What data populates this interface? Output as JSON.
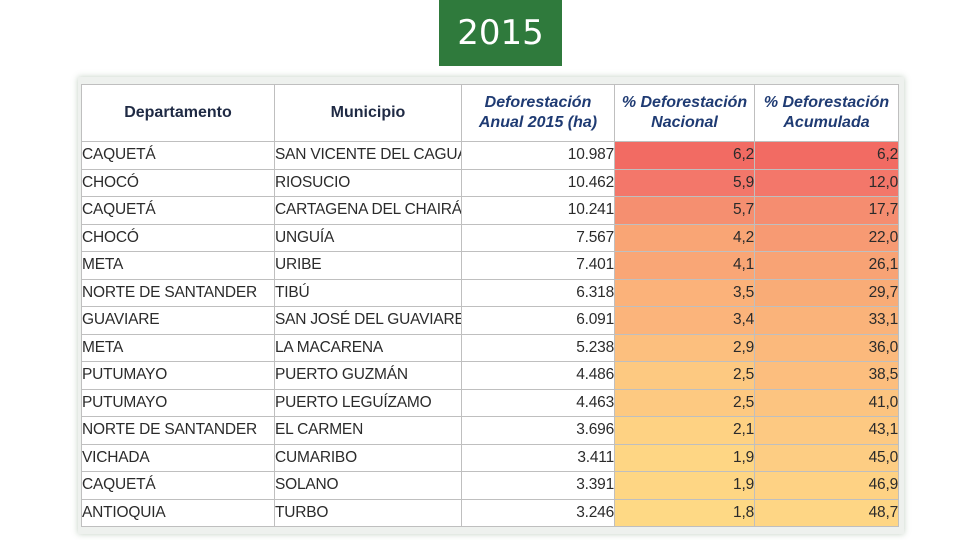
{
  "title": "2015",
  "table": {
    "headers": {
      "departamento": "Departamento",
      "municipio": "Municipio",
      "deforestacion": "Deforestación Anual 2015 (ha)",
      "nacional": "% Deforestación Nacional",
      "acumulada": "% Deforestación Acumulada"
    },
    "rows": [
      {
        "departamento": "CAQUETÁ",
        "municipio": "SAN VICENTE DEL CAGUÁN",
        "hectareas": "10.987",
        "nacional": "6,2",
        "acumulada": "6,2",
        "nac_color": "#f26b63",
        "acc_color": "#f26b63"
      },
      {
        "departamento": "CHOCÓ",
        "municipio": "RIOSUCIO",
        "hectareas": "10.462",
        "nacional": "5,9",
        "acumulada": "12,0",
        "nac_color": "#f3776a",
        "acc_color": "#f3776a"
      },
      {
        "departamento": "CAQUETÁ",
        "municipio": "CARTAGENA DEL CHAIRÁ",
        "hectareas": "10.241",
        "nacional": "5,7",
        "acumulada": "17,7",
        "nac_color": "#f58f70",
        "acc_color": "#f58d70"
      },
      {
        "departamento": "CHOCÓ",
        "municipio": "UNGUÍA",
        "hectareas": "7.567",
        "nacional": "4,2",
        "acumulada": "22,0",
        "nac_color": "#f9a575",
        "acc_color": "#f79a73"
      },
      {
        "departamento": "META",
        "municipio": "URIBE",
        "hectareas": "7.401",
        "nacional": "4,1",
        "acumulada": "26,1",
        "nac_color": "#f9a676",
        "acc_color": "#f8a375"
      },
      {
        "departamento": "NORTE DE SANTANDER",
        "municipio": "TIBÚ",
        "hectareas": "6.318",
        "nacional": "3,5",
        "acumulada": "29,7",
        "nac_color": "#fbb27a",
        "acc_color": "#f9ac77"
      },
      {
        "departamento": "GUAVIARE",
        "municipio": "SAN JOSÉ DEL GUAVIARE",
        "hectareas": "6.091",
        "nacional": "3,4",
        "acumulada": "33,1",
        "nac_color": "#fbb47b",
        "acc_color": "#fab37a"
      },
      {
        "departamento": "META",
        "municipio": "LA MACARENA",
        "hectareas": "5.238",
        "nacional": "2,9",
        "acumulada": "36,0",
        "nac_color": "#fcbf7e",
        "acc_color": "#fbb97c"
      },
      {
        "departamento": "PUTUMAYO",
        "municipio": "PUERTO GUZMÁN",
        "hectareas": "4.486",
        "nacional": "2,5",
        "acumulada": "38,5",
        "nac_color": "#fdc981",
        "acc_color": "#fcbe7e"
      },
      {
        "departamento": "PUTUMAYO",
        "municipio": "PUERTO LEGUÍZAMO",
        "hectareas": "4.463",
        "nacional": "2,5",
        "acumulada": "41,0",
        "nac_color": "#fdc981",
        "acc_color": "#fcc480"
      },
      {
        "departamento": "NORTE DE SANTANDER",
        "municipio": "EL CARMEN",
        "hectareas": "3.696",
        "nacional": "2,1",
        "acumulada": "43,1",
        "nac_color": "#fed283",
        "acc_color": "#fdc982"
      },
      {
        "departamento": "VICHADA",
        "municipio": "CUMARIBO",
        "hectareas": "3.411",
        "nacional": "1,9",
        "acumulada": "45,0",
        "nac_color": "#fed684",
        "acc_color": "#fdcd83"
      },
      {
        "departamento": "CAQUETÁ",
        "municipio": "SOLANO",
        "hectareas": "3.391",
        "nacional": "1,9",
        "acumulada": "46,9",
        "nac_color": "#fed684",
        "acc_color": "#fed284"
      },
      {
        "departamento": "ANTIOQUIA",
        "municipio": "TURBO",
        "hectareas": "3.246",
        "nacional": "1,8",
        "acumulada": "48,7",
        "nac_color": "#fed985",
        "acc_color": "#fed685"
      }
    ]
  }
}
